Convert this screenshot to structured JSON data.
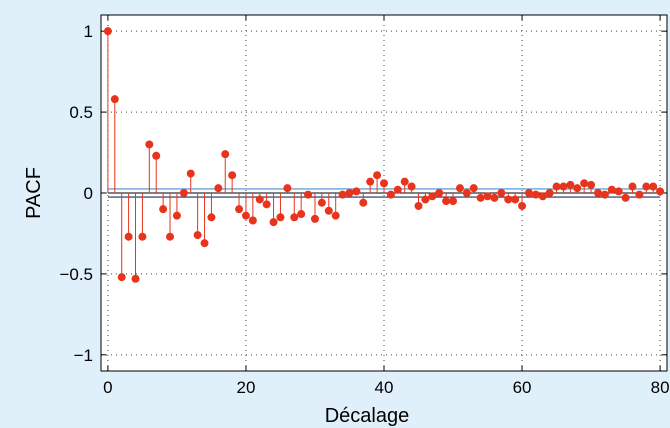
{
  "chart_data": {
    "type": "stem",
    "xlabel": "Décalage",
    "ylabel": "PACF",
    "xlim": [
      -1,
      81
    ],
    "ylim": [
      -1.1,
      1.1
    ],
    "xticks": [
      0,
      20,
      40,
      60,
      80
    ],
    "xtick_labels": [
      "0",
      "20",
      "40",
      "60",
      "80"
    ],
    "yticks": [
      -1,
      -0.5,
      0,
      0.5,
      1
    ],
    "ytick_labels": [
      "−1",
      "−0.5",
      "0",
      "0.5",
      "1"
    ],
    "grid": true,
    "confidence_bounds": [
      0.025,
      -0.025
    ],
    "lags": [
      0,
      1,
      2,
      3,
      4,
      5,
      6,
      7,
      8,
      9,
      10,
      11,
      12,
      13,
      14,
      15,
      16,
      17,
      18,
      19,
      20,
      21,
      22,
      23,
      24,
      25,
      26,
      27,
      28,
      29,
      30,
      31,
      32,
      33,
      34,
      35,
      36,
      37,
      38,
      39,
      40,
      41,
      42,
      43,
      44,
      45,
      46,
      47,
      48,
      49,
      50,
      51,
      52,
      53,
      54,
      55,
      56,
      57,
      58,
      59,
      60,
      61,
      62,
      63,
      64,
      65,
      66,
      67,
      68,
      69,
      70,
      71,
      72,
      73,
      74,
      75,
      76,
      77,
      78,
      79,
      80
    ],
    "values": [
      1.0,
      0.58,
      -0.52,
      -0.27,
      -0.53,
      -0.27,
      0.3,
      0.23,
      -0.1,
      -0.27,
      -0.14,
      0.0,
      0.12,
      -0.26,
      -0.31,
      -0.15,
      0.03,
      0.24,
      0.11,
      -0.1,
      -0.14,
      -0.17,
      -0.04,
      -0.07,
      -0.18,
      -0.15,
      0.03,
      -0.15,
      -0.13,
      -0.01,
      -0.16,
      -0.06,
      -0.11,
      -0.14,
      -0.01,
      0.0,
      0.01,
      -0.06,
      0.07,
      0.11,
      0.06,
      -0.01,
      0.02,
      0.07,
      0.04,
      -0.08,
      -0.04,
      -0.02,
      0.0,
      -0.05,
      -0.05,
      0.03,
      0.0,
      0.03,
      -0.03,
      -0.02,
      -0.03,
      0.0,
      -0.04,
      -0.04,
      -0.08,
      0.0,
      -0.01,
      -0.02,
      0.0,
      0.04,
      0.04,
      0.05,
      0.03,
      0.06,
      0.05,
      0.0,
      -0.01,
      0.02,
      0.01,
      -0.03,
      0.04,
      -0.01,
      0.04,
      0.04,
      0.01
    ]
  },
  "colors": {
    "stem": "#e8341c",
    "marker": "#e8341c",
    "bound_upper": "#4a8fd0",
    "bound_lower": "#17306a",
    "zero_line": "#000000",
    "background": "#e0f0fa",
    "plot_area": "#ffffff"
  }
}
